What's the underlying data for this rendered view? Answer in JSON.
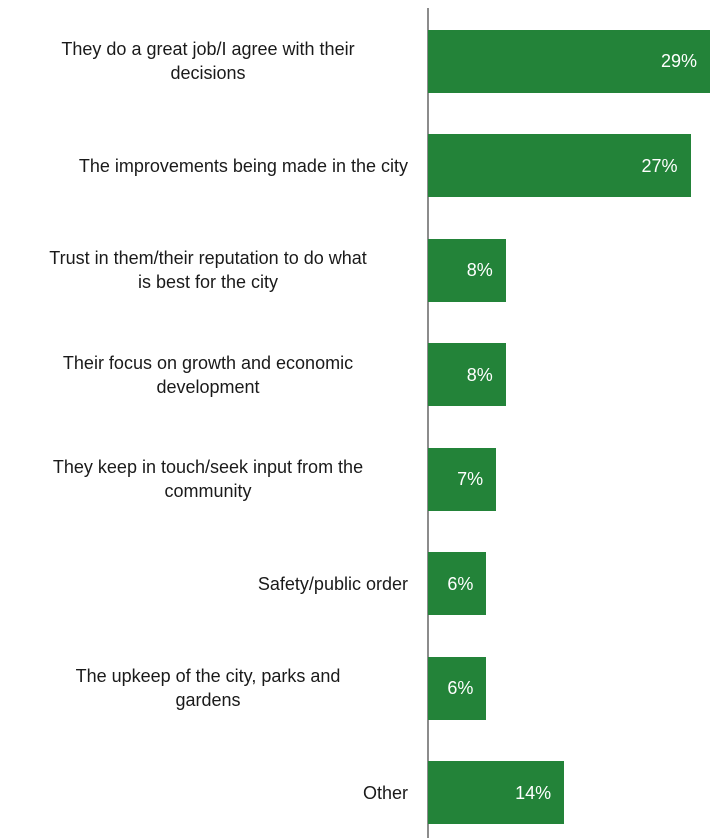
{
  "colors": {
    "bar": "#238339",
    "axis": "#8c8c8c",
    "label_text": "#1a1a1a",
    "value_text": "#ffffff"
  },
  "chart_data": {
    "type": "bar",
    "orientation": "horizontal",
    "categories": [
      "They do a great job/I agree with their decisions",
      "The improvements being made in the city",
      "Trust in them/their reputation to do what is best for the city",
      "Their focus on growth and economic development",
      "They keep in touch/seek input from the community",
      "Safety/public order",
      "The upkeep of the city, parks and gardens",
      "Other"
    ],
    "label_lines": [
      [
        "They do a great job/I agree with their",
        "decisions"
      ],
      [
        "The improvements being made in the city"
      ],
      [
        "Trust in them/their reputation to do what",
        "is best for the city"
      ],
      [
        "Their focus on growth and economic",
        "development"
      ],
      [
        "They keep in touch/seek input from the",
        "community"
      ],
      [
        "Safety/public order"
      ],
      [
        "The upkeep of the city, parks and",
        "gardens"
      ],
      [
        "Other"
      ]
    ],
    "values": [
      29,
      27,
      8,
      8,
      7,
      6,
      6,
      14
    ],
    "value_labels": [
      "29%",
      "27%",
      "8%",
      "8%",
      "7%",
      "6%",
      "6%",
      "14%"
    ],
    "unit": "%",
    "xlim": [
      0,
      29
    ],
    "title": "",
    "xlabel": "",
    "ylabel": "",
    "grid": false,
    "legend": "none"
  }
}
